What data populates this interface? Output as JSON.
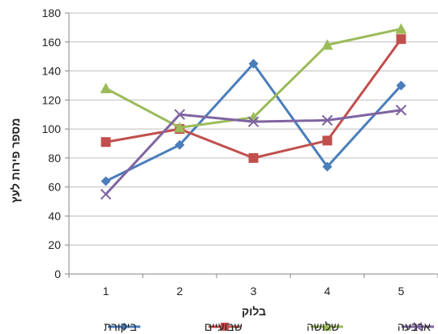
{
  "chart_data": {
    "type": "line",
    "title": "",
    "xlabel": "בלוק",
    "ylabel": "מספר פירות לעץ",
    "categories": [
      "1",
      "2",
      "3",
      "4",
      "5"
    ],
    "ylim": [
      0,
      180
    ],
    "yticks": [
      0,
      20,
      40,
      60,
      80,
      100,
      120,
      140,
      160,
      180
    ],
    "grid": "horizontal",
    "legend_position": "bottom",
    "series": [
      {
        "name": "ביקורת",
        "values": [
          64,
          89,
          145,
          74,
          130
        ],
        "color": "#4a7ebb",
        "marker": "diamond"
      },
      {
        "name": "שבועיים",
        "values": [
          91,
          100,
          80,
          92,
          162
        ],
        "color": "#c0504d",
        "marker": "square"
      },
      {
        "name": "שלושה",
        "values": [
          128,
          101,
          108,
          158,
          169
        ],
        "color": "#9bbb59",
        "marker": "triangle"
      },
      {
        "name": "ארבעה",
        "values": [
          55,
          110,
          105,
          106,
          113
        ],
        "color": "#8064a2",
        "marker": "x"
      }
    ]
  }
}
